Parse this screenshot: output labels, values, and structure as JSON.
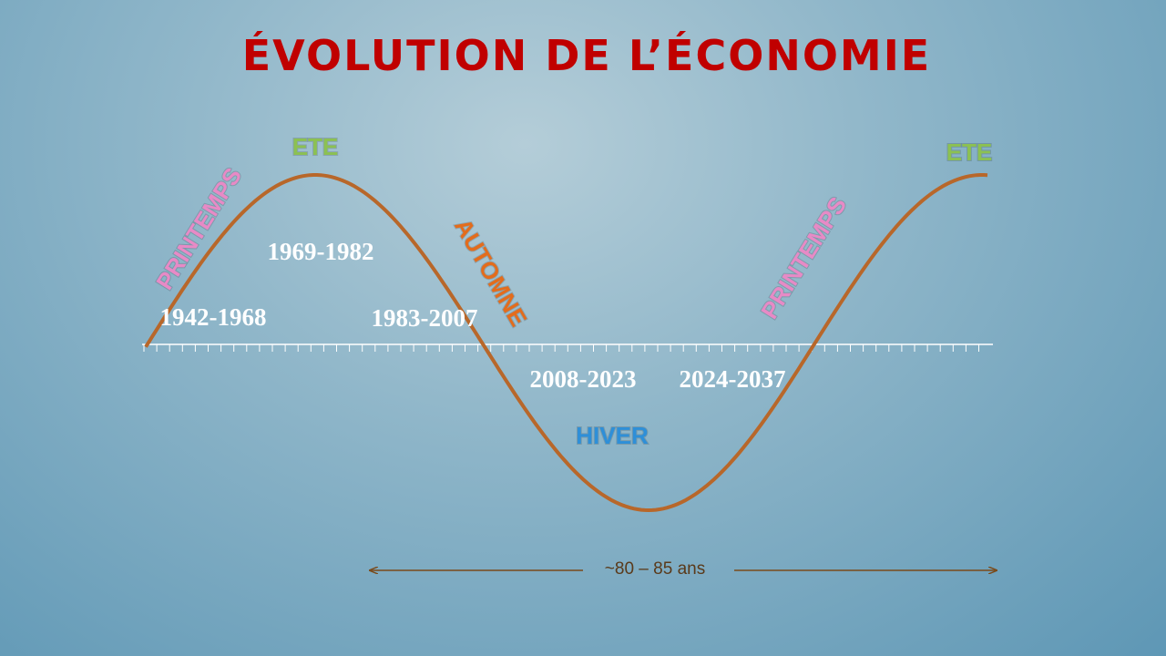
{
  "title": "ÉVOLUTION DE L’ÉCONOMIE",
  "seasons": [
    "PRINTEMPS",
    "ETE",
    "AUTOMNE",
    "HIVER",
    "PRINTEMPS",
    "ETE"
  ],
  "periods": [
    "1942-1968",
    "1969-1982",
    "1983-2007",
    "2008-2023",
    "2024-2037"
  ],
  "span_label": "~80 – 85 ans"
}
